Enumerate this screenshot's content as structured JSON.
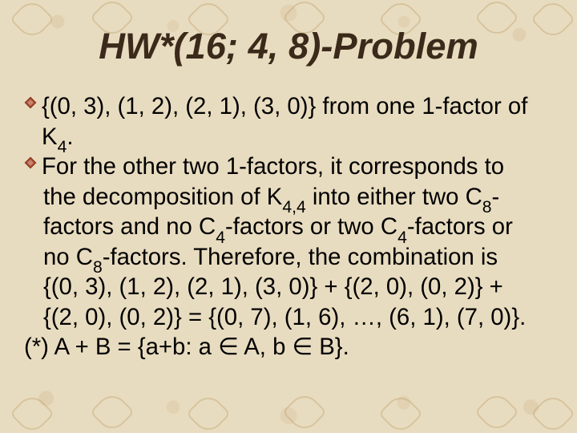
{
  "slide": {
    "background_color": "#e8dcc0",
    "pattern_color": "#b89860",
    "title": {
      "text": "HW*(16; 4, 8)-Problem",
      "font_size_pt": 34,
      "font_weight": "bold",
      "font_style": "italic",
      "color": "#3b2a1a"
    },
    "body": {
      "font_size_pt": 22,
      "color": "#000000",
      "bullet_color": "#a8462a",
      "items": [
        {
          "kind": "bullet",
          "html": "{(0, 3), (1, 2), (2, 1), (3, 0)} from one 1-factor of K<sub>4</sub>."
        },
        {
          "kind": "bullet",
          "html": "For the other two 1-factors, it corresponds to"
        },
        {
          "kind": "cont",
          "html": "the decomposition of K<sub>4,4</sub> into either two C<sub>8</sub>-"
        },
        {
          "kind": "cont",
          "html": "factors and no C<sub>4</sub>-factors or two C<sub>4</sub>-factors or"
        },
        {
          "kind": "cont",
          "html": "no C<sub>8</sub>-factors.  Therefore, the combination is"
        },
        {
          "kind": "cont",
          "html": "{(0, 3), (1, 2), (2, 1), (3, 0)} + {(2, 0), (0, 2)} +"
        },
        {
          "kind": "cont",
          "html": "{(2, 0), (0, 2)} = {(0, 7), (1, 6), …, (6, 1), (7, 0)}."
        },
        {
          "kind": "plain",
          "html": "(*) A + B = {a+b: a ∈ A, b ∈ B}."
        }
      ]
    }
  }
}
